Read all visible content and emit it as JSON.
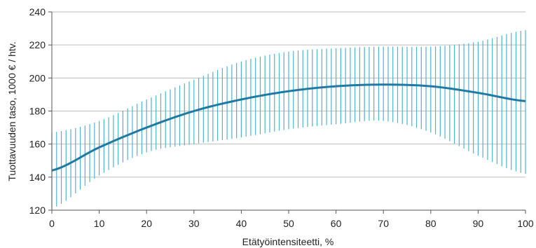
{
  "chart_data": {
    "type": "line",
    "title": "",
    "xlabel": "Etätyöintensiteetti, %",
    "ylabel": "Tuottavuuden taso, 1000 € / htv.",
    "xlim": [
      0,
      100
    ],
    "ylim": [
      120,
      240
    ],
    "xticks": [
      0,
      10,
      20,
      30,
      40,
      50,
      60,
      70,
      80,
      90,
      100
    ],
    "yticks": [
      120,
      140,
      160,
      180,
      200,
      220,
      240
    ],
    "grid": "horizontal",
    "colors": {
      "line": "#1f7aa3",
      "interval": "#4fb3cf",
      "grid": "#bdbdbd",
      "axis": "#555555"
    },
    "series": [
      {
        "x": [
          0,
          10,
          20,
          30,
          40,
          50,
          60,
          70,
          80,
          90,
          100
        ],
        "values": [
          144,
          158,
          170,
          180,
          187,
          192,
          195,
          196,
          195,
          191,
          186
        ]
      }
    ],
    "intervals": {
      "x": [
        0,
        10,
        20,
        30,
        40,
        50,
        60,
        70,
        80,
        90,
        100
      ],
      "lower": [
        121,
        141,
        155,
        160,
        164,
        169,
        172,
        174,
        167,
        153,
        142
      ],
      "upper": [
        167,
        174,
        187,
        199,
        210,
        216,
        218,
        219,
        219,
        222,
        229
      ]
    }
  }
}
